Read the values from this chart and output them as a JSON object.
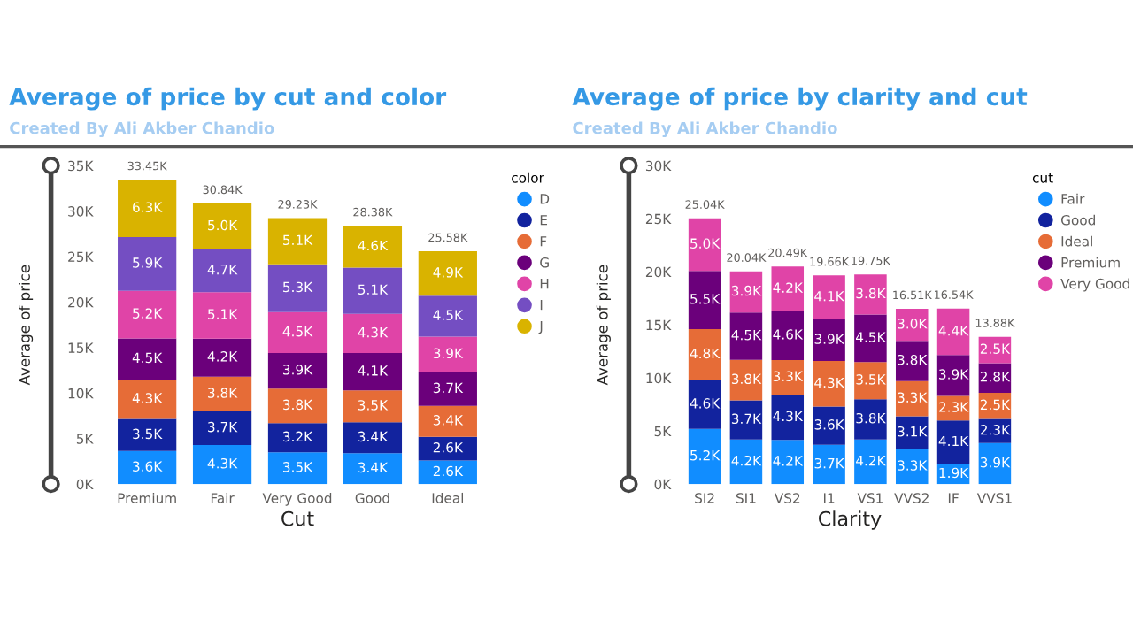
{
  "chart_data": [
    {
      "type": "bar",
      "stacked": true,
      "title": "Average of price by cut and color",
      "subtitle": "Created By Ali Akber Chandio",
      "xlabel": "Cut",
      "ylabel": "Average of price",
      "legend_title": "color",
      "legend": "right",
      "grid": false,
      "categories": [
        "Premium",
        "Fair",
        "Very Good",
        "Good",
        "Ideal"
      ],
      "ylim": [
        0,
        35
      ],
      "yticks": [
        {
          "value": 0,
          "label": "0K"
        },
        {
          "value": 5,
          "label": "5K"
        },
        {
          "value": 10,
          "label": "10K"
        },
        {
          "value": 15,
          "label": "15K"
        },
        {
          "value": 20,
          "label": "20K"
        },
        {
          "value": 25,
          "label": "25K"
        },
        {
          "value": 30,
          "label": "30K"
        },
        {
          "value": 35,
          "label": "35K"
        }
      ],
      "totals": [
        "33.45K",
        "30.84K",
        "29.23K",
        "28.38K",
        "25.58K"
      ],
      "series": [
        {
          "name": "D",
          "color": "#118dff",
          "values": [
            3.63,
            4.3,
            3.5,
            3.4,
            2.6
          ],
          "value_labels": [
            "3.6K",
            "4.3K",
            "3.5K",
            "3.4K",
            "2.6K"
          ]
        },
        {
          "name": "E",
          "color": "#12239e",
          "values": [
            3.53,
            3.7,
            3.2,
            3.4,
            2.6
          ],
          "value_labels": [
            "3.5K",
            "3.7K",
            "3.2K",
            "3.4K",
            "2.6K"
          ]
        },
        {
          "name": "F",
          "color": "#e66c37",
          "values": [
            4.33,
            3.8,
            3.8,
            3.5,
            3.4
          ],
          "value_labels": [
            "4.3K",
            "3.8K",
            "3.8K",
            "3.5K",
            "3.4K"
          ]
        },
        {
          "name": "G",
          "color": "#6b007b",
          "values": [
            4.53,
            4.2,
            3.9,
            4.1,
            3.7
          ],
          "value_labels": [
            "4.5K",
            "4.2K",
            "3.9K",
            "4.1K",
            "3.7K"
          ]
        },
        {
          "name": "H",
          "color": "#e044a7",
          "values": [
            5.23,
            5.1,
            4.5,
            4.3,
            3.9
          ],
          "value_labels": [
            "5.2K",
            "5.1K",
            "4.5K",
            "4.3K",
            "3.9K"
          ]
        },
        {
          "name": "I",
          "color": "#744ec2",
          "values": [
            5.9,
            4.7,
            5.26,
            5.1,
            4.5
          ],
          "value_labels": [
            "5.9K",
            "4.7K",
            "5.3K",
            "5.1K",
            "4.5K"
          ]
        },
        {
          "name": "J",
          "color": "#d9b300",
          "values": [
            6.3,
            5.04,
            5.07,
            4.58,
            4.88
          ],
          "value_labels": [
            "6.3K",
            "5.0K",
            "5.1K",
            "4.6K",
            "4.9K"
          ]
        }
      ]
    },
    {
      "type": "bar",
      "stacked": true,
      "title": "Average of price by clarity and cut",
      "subtitle": "Created By Ali Akber Chandio",
      "xlabel": "Clarity",
      "ylabel": "Average of price",
      "legend_title": "cut",
      "legend": "right",
      "grid": false,
      "categories": [
        "SI2",
        "SI1",
        "VS2",
        "I1",
        "VS1",
        "VVS2",
        "IF",
        "VVS1"
      ],
      "ylim": [
        0,
        30
      ],
      "yticks": [
        {
          "value": 0,
          "label": "0K"
        },
        {
          "value": 5,
          "label": "5K"
        },
        {
          "value": 10,
          "label": "10K"
        },
        {
          "value": 15,
          "label": "15K"
        },
        {
          "value": 20,
          "label": "20K"
        },
        {
          "value": 25,
          "label": "25K"
        },
        {
          "value": 30,
          "label": "30K"
        }
      ],
      "totals": [
        "25.04K",
        "20.04K",
        "20.49K",
        "19.66K",
        "19.75K",
        "16.51K",
        "16.54K",
        "13.88K"
      ],
      "series": [
        {
          "name": "Fair",
          "color": "#118dff",
          "values": [
            5.2,
            4.2,
            4.16,
            3.7,
            4.2,
            3.3,
            1.9,
            3.87
          ],
          "value_labels": [
            "5.2K",
            "4.2K",
            "4.2K",
            "3.7K",
            "4.2K",
            "3.3K",
            "1.9K",
            "3.9K"
          ]
        },
        {
          "name": "Good",
          "color": "#12239e",
          "values": [
            4.6,
            3.7,
            4.26,
            3.6,
            3.8,
            3.1,
            4.1,
            2.27
          ],
          "value_labels": [
            "4.6K",
            "3.7K",
            "4.3K",
            "3.6K",
            "3.8K",
            "3.1K",
            "4.1K",
            "2.3K"
          ]
        },
        {
          "name": "Ideal",
          "color": "#e66c37",
          "values": [
            4.8,
            3.8,
            3.27,
            4.3,
            3.5,
            3.3,
            2.3,
            2.47
          ],
          "value_labels": [
            "4.8K",
            "3.8K",
            "3.3K",
            "4.3K",
            "3.5K",
            "3.3K",
            "2.3K",
            "2.5K"
          ]
        },
        {
          "name": "Premium",
          "color": "#6b007b",
          "values": [
            5.47,
            4.47,
            4.6,
            3.93,
            4.47,
            3.8,
            3.87,
            2.79
          ],
          "value_labels": [
            "5.5K",
            "4.5K",
            "4.6K",
            "3.9K",
            "4.5K",
            "3.8K",
            "3.9K",
            "2.8K"
          ]
        },
        {
          "name": "Very Good",
          "color": "#e044a7",
          "values": [
            4.97,
            3.87,
            4.2,
            4.13,
            3.78,
            3.01,
            4.37,
            2.48
          ],
          "value_labels": [
            "5.0K",
            "3.9K",
            "4.2K",
            "4.1K",
            "3.8K",
            "3.0K",
            "4.4K",
            "2.5K"
          ]
        }
      ]
    }
  ]
}
